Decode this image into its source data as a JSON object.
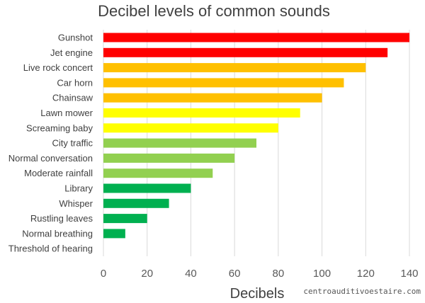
{
  "chart_data": {
    "type": "bar",
    "orientation": "horizontal",
    "title": "Decibel levels of common sounds",
    "xlabel": "Decibels",
    "ylabel": "",
    "xlim": [
      0,
      140
    ],
    "ticks": [
      "0",
      "20",
      "40",
      "60",
      "80",
      "100",
      "120",
      "140"
    ],
    "grid": true,
    "categories": [
      "Gunshot",
      "Jet engine",
      "Live rock concert",
      "Car horn",
      "Chainsaw",
      "Lawn mower",
      "Screaming baby",
      "City traffic",
      "Normal conversation",
      "Moderate rainfall",
      "Library",
      "Whisper",
      "Rustling leaves",
      "Normal breathing",
      "Threshold of hearing"
    ],
    "values": [
      140,
      130,
      120,
      110,
      100,
      90,
      80,
      70,
      60,
      50,
      40,
      30,
      20,
      10,
      0
    ],
    "colors": [
      "#ff0000",
      "#ff0000",
      "#ffc000",
      "#ffc000",
      "#ffc000",
      "#ffff00",
      "#ffff00",
      "#92d050",
      "#92d050",
      "#92d050",
      "#00b050",
      "#00b050",
      "#00b050",
      "#00b050",
      "#00b050"
    ]
  },
  "watermark": "centroauditivoestaire.com"
}
